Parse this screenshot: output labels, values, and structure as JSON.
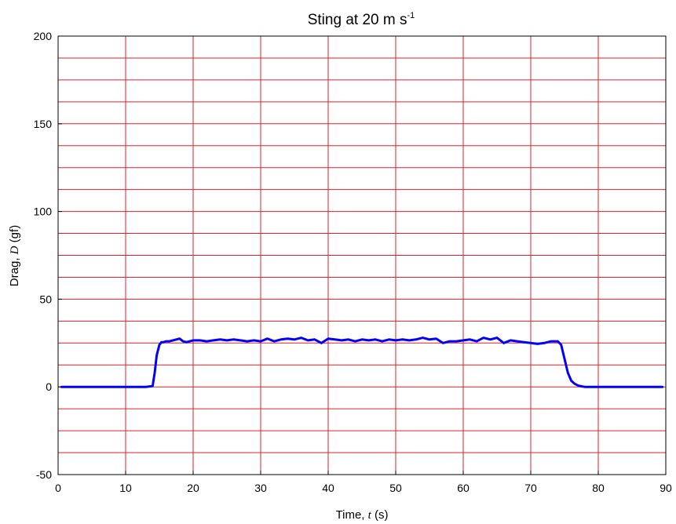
{
  "chart_data": {
    "type": "line",
    "title": {
      "main": "Sting at 20 m s",
      "superscript": "-1"
    },
    "xlabel": {
      "prefix": "Time, ",
      "symbol": "t",
      "suffix": " (s)"
    },
    "ylabel": {
      "prefix": "Drag, ",
      "symbol": "D",
      "suffix": " (gf)"
    },
    "xlim": [
      0,
      90
    ],
    "ylim": [
      -50,
      200
    ],
    "x_ticks": [
      0,
      10,
      20,
      30,
      40,
      50,
      60,
      70,
      80,
      90
    ],
    "y_ticks": [
      -50,
      0,
      50,
      100,
      150,
      200
    ],
    "y_minor_step": 12.5,
    "grid": true,
    "grid_color": "#e0202a",
    "line_color": "#0000ff",
    "series": [
      {
        "x": [
          0.5,
          5,
          10,
          13,
          14,
          14.3,
          14.6,
          15,
          15.3,
          15.6,
          16,
          16.5,
          17,
          17.5,
          18,
          18.5,
          19,
          19.5,
          20,
          21,
          22,
          23,
          24,
          25,
          26,
          27,
          28,
          29,
          30,
          31,
          32,
          33,
          34,
          35,
          36,
          37,
          38,
          39,
          40,
          41,
          42,
          43,
          44,
          45,
          46,
          47,
          48,
          49,
          50,
          51,
          52,
          53,
          54,
          55,
          56,
          57,
          58,
          59,
          60,
          61,
          62,
          63,
          64,
          65,
          66,
          67,
          68,
          69,
          70,
          71,
          72,
          73,
          74,
          74.5,
          75,
          75.5,
          76,
          76.5,
          77,
          77.5,
          78,
          79,
          80,
          85,
          89.5
        ],
        "y": [
          0,
          0,
          0,
          0,
          0.5,
          8,
          18,
          24,
          25.5,
          25.5,
          26,
          26,
          26.5,
          27,
          27.5,
          26,
          25.5,
          26,
          26.5,
          26.5,
          26,
          26.5,
          27,
          26.5,
          27,
          26.5,
          26,
          26.5,
          26,
          27.5,
          26,
          27,
          27.5,
          27,
          28,
          26.5,
          27,
          25,
          27.5,
          27,
          26.5,
          27,
          26,
          27,
          26.5,
          27,
          26,
          27,
          26.5,
          27,
          26.5,
          27,
          28,
          27,
          27.5,
          25,
          26,
          26,
          26.5,
          27,
          26,
          28,
          27,
          28,
          25,
          26.5,
          26,
          25.5,
          25,
          24.5,
          25,
          26,
          26,
          24,
          16,
          8,
          3.5,
          1.8,
          0.8,
          0.3,
          0,
          0,
          0,
          0,
          0
        ]
      }
    ]
  }
}
